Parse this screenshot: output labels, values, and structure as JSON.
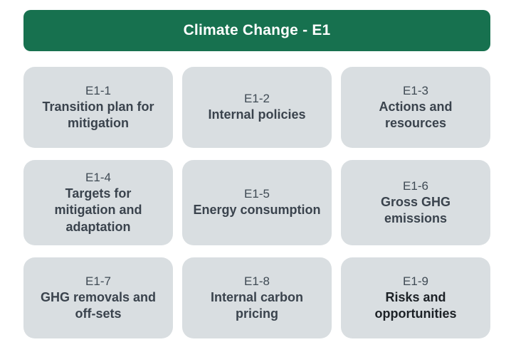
{
  "header": {
    "title": "Climate Change - E1"
  },
  "colors": {
    "page_bg": "#ffffff",
    "header_bg": "#17714f",
    "header_text": "#ffffff",
    "card_bg": "#d9dee1",
    "card_id_text": "#3f4a54",
    "card_text": "#3a434d",
    "card_text_dark": "#1c2126"
  },
  "cards": [
    {
      "id": "E1-1",
      "title": "Transition plan for mitigation"
    },
    {
      "id": "E1-2",
      "title": "Internal policies"
    },
    {
      "id": "E1-3",
      "title": "Actions and resources"
    },
    {
      "id": "E1-4",
      "title": "Targets for mitigation and adaptation"
    },
    {
      "id": "E1-5",
      "title": "Energy consumption"
    },
    {
      "id": "E1-6",
      "title": "Gross GHG emissions"
    },
    {
      "id": "E1-7",
      "title": "GHG removals and off-sets"
    },
    {
      "id": "E1-8",
      "title": "Internal carbon pricing"
    },
    {
      "id": "E1-9",
      "title": "Risks and opportunities"
    }
  ]
}
